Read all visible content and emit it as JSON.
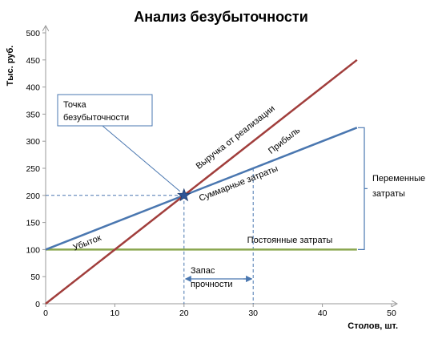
{
  "chart_data": {
    "type": "line",
    "title": "Анализ безубыточности",
    "xlabel": "Столов, шт.",
    "ylabel": "Тыс. руб.",
    "xlim": [
      0,
      50
    ],
    "ylim": [
      0,
      500
    ],
    "xticks": [
      0,
      10,
      20,
      30,
      40,
      50
    ],
    "yticks": [
      0,
      50,
      100,
      150,
      200,
      250,
      300,
      350,
      400,
      450,
      500
    ],
    "grid": false,
    "series": [
      {
        "name": "Выручка от реализации",
        "color": "#a13e3c",
        "x": [
          0,
          45
        ],
        "y": [
          0,
          450
        ]
      },
      {
        "name": "Суммарные затраты",
        "color": "#4a77b0",
        "x": [
          0,
          45
        ],
        "y": [
          100,
          325
        ]
      },
      {
        "name": "Постоянные затраты",
        "color": "#8aa64e",
        "x": [
          0,
          45
        ],
        "y": [
          100,
          100
        ]
      }
    ],
    "break_even": {
      "x": 20,
      "y": 200
    },
    "safety_margin_x": [
      20,
      30
    ],
    "annotations": {
      "break_even_label": [
        "Точка",
        "безубыточности"
      ],
      "profit": "Прибыль",
      "loss": "Убыток",
      "safety_margin": [
        "Запас",
        "прочности"
      ],
      "variable_costs": [
        "Переменные",
        "затраты"
      ]
    }
  }
}
